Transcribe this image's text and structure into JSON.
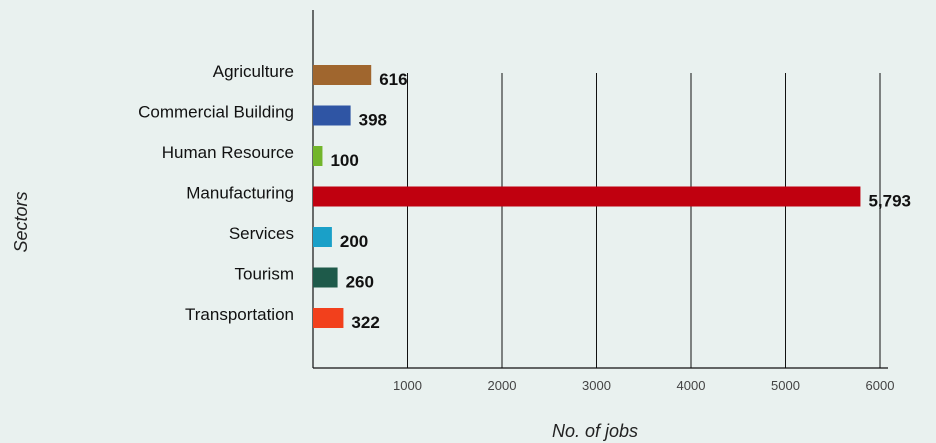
{
  "chart_data": {
    "type": "bar",
    "orientation": "horizontal",
    "categories": [
      "Agriculture",
      "Commercial Building",
      "Human Resource",
      "Manufacturing",
      "Services",
      "Tourism",
      "Transportation"
    ],
    "values": [
      616,
      398,
      100,
      5793,
      200,
      260,
      322
    ],
    "value_labels": [
      "616",
      "398",
      "100",
      "5,793",
      "200",
      "260",
      "322"
    ],
    "colors": [
      "#a0662e",
      "#2f55a4",
      "#72b52b",
      "#c0000f",
      "#1aa0c8",
      "#1e5a4a",
      "#f2401c"
    ],
    "xlabel": "No. of jobs",
    "ylabel": "Sectors",
    "xlim": [
      0,
      6000
    ],
    "xticks": [
      1000,
      2000,
      3000,
      4000,
      5000,
      6000
    ],
    "xtick_labels": [
      "1000",
      "2000",
      "3000",
      "4000",
      "5000",
      "6000"
    ],
    "grid": "vertical",
    "legend": "none"
  }
}
